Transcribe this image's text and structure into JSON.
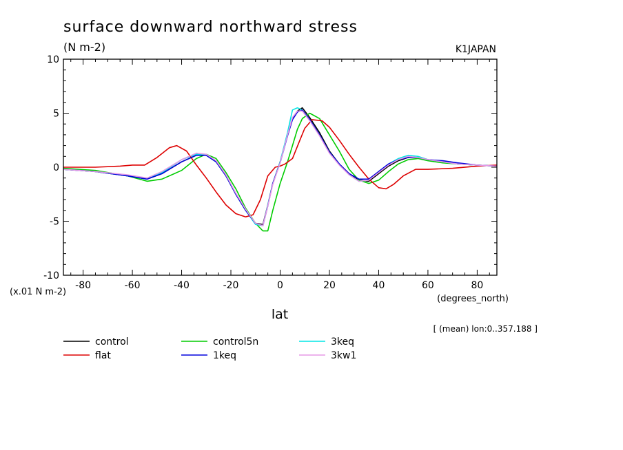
{
  "chart_data": {
    "type": "line",
    "title": "surface downward northward stress",
    "subtitle": "(N m-2)",
    "source_label": "K1JAPAN",
    "xlabel": "lat",
    "xunits": "(degrees_north)",
    "yscale_label": "(x.01 N m-2)",
    "mean_note": "[ (mean) lon:0..357.188 ]",
    "xlim": [
      -88,
      88
    ],
    "ylim": [
      -10,
      10
    ],
    "xticks": [
      -80,
      -60,
      -40,
      -20,
      0,
      20,
      40,
      60,
      80
    ],
    "yticks": [
      -10,
      -5,
      0,
      5,
      10
    ],
    "xtick_labels": [
      "-80",
      "-60",
      "-40",
      "-20",
      "0",
      "20",
      "40",
      "60",
      "80"
    ],
    "ytick_labels": [
      "-10",
      "-5",
      "0",
      "5",
      "10"
    ],
    "series": [
      {
        "name": "control",
        "color": "#000000",
        "x": [
          -88,
          -75,
          -62,
          -54,
          -48,
          -40,
          -34,
          -30,
          -26,
          -22,
          -18,
          -14,
          -10,
          -7,
          -5,
          -3,
          0,
          3,
          5,
          7,
          9,
          12,
          16,
          20,
          24,
          28,
          32,
          36,
          40,
          44,
          48,
          52,
          56,
          60,
          66,
          72,
          80,
          88
        ],
        "y": [
          -0.2,
          -0.4,
          -0.8,
          -1.1,
          -0.6,
          0.5,
          1.1,
          1.1,
          0.5,
          -0.8,
          -2.5,
          -4.0,
          -5.2,
          -5.3,
          -3.5,
          -1.5,
          0.5,
          3.0,
          4.5,
          5.2,
          5.5,
          4.6,
          3.2,
          1.5,
          0.3,
          -0.6,
          -1.2,
          -1.3,
          -0.6,
          0.1,
          0.6,
          0.9,
          0.9,
          0.7,
          0.5,
          0.3,
          0.2,
          0.1
        ]
      },
      {
        "name": "control5n",
        "color": "#00cc00",
        "x": [
          -88,
          -75,
          -62,
          -54,
          -48,
          -40,
          -34,
          -30,
          -26,
          -22,
          -18,
          -14,
          -10,
          -7,
          -5,
          -3,
          0,
          3,
          5,
          7,
          9,
          12,
          16,
          20,
          24,
          28,
          32,
          36,
          40,
          44,
          48,
          52,
          56,
          60,
          66,
          72,
          80,
          88
        ],
        "y": [
          -0.1,
          -0.3,
          -0.8,
          -1.3,
          -1.1,
          -0.3,
          0.8,
          1.2,
          0.8,
          -0.5,
          -2.0,
          -3.8,
          -5.2,
          -5.9,
          -5.9,
          -4.0,
          -1.5,
          0.5,
          2.0,
          3.5,
          4.5,
          5.0,
          4.5,
          3.0,
          1.5,
          -0.2,
          -1.2,
          -1.5,
          -1.2,
          -0.4,
          0.3,
          0.7,
          0.8,
          0.6,
          0.4,
          0.3,
          0.2,
          0.1
        ]
      },
      {
        "name": "3keq",
        "color": "#00e5e5",
        "x": [
          -88,
          -75,
          -62,
          -54,
          -48,
          -40,
          -34,
          -30,
          -26,
          -22,
          -18,
          -14,
          -10,
          -7,
          -5,
          -3,
          0,
          3,
          5,
          7,
          9,
          12,
          16,
          20,
          24,
          28,
          32,
          36,
          40,
          44,
          48,
          52,
          56,
          60,
          66,
          72,
          80,
          88
        ],
        "y": [
          -0.2,
          -0.4,
          -0.8,
          -1.1,
          -0.5,
          0.7,
          1.2,
          1.1,
          0.5,
          -0.8,
          -2.5,
          -4.0,
          -5.3,
          -5.4,
          -3.5,
          -1.5,
          0.5,
          3.2,
          5.3,
          5.5,
          5.3,
          4.4,
          3.0,
          1.4,
          0.3,
          -0.7,
          -1.3,
          -1.2,
          -0.4,
          0.3,
          0.8,
          1.1,
          1.0,
          0.7,
          0.5,
          0.3,
          0.2,
          0.1
        ]
      },
      {
        "name": "flat",
        "color": "#dd0000",
        "x": [
          -88,
          -75,
          -65,
          -60,
          -55,
          -50,
          -45,
          -42,
          -38,
          -34,
          -30,
          -26,
          -22,
          -18,
          -14,
          -11,
          -8,
          -5,
          -2,
          0,
          2,
          5,
          8,
          10,
          13,
          17,
          20,
          24,
          28,
          32,
          36,
          40,
          43,
          46,
          50,
          55,
          60,
          70,
          80,
          88
        ],
        "y": [
          0.0,
          0.0,
          0.1,
          0.2,
          0.2,
          0.9,
          1.8,
          2.0,
          1.5,
          0.2,
          -1.0,
          -2.3,
          -3.5,
          -4.3,
          -4.6,
          -4.4,
          -3.0,
          -0.8,
          0.0,
          0.1,
          0.3,
          0.8,
          2.5,
          3.6,
          4.4,
          4.3,
          3.7,
          2.5,
          1.2,
          0.0,
          -1.1,
          -1.9,
          -2.0,
          -1.6,
          -0.8,
          -0.2,
          -0.2,
          -0.1,
          0.1,
          0.2
        ]
      },
      {
        "name": "1keq",
        "color": "#0000dd",
        "x": [
          -88,
          -75,
          -62,
          -54,
          -48,
          -40,
          -34,
          -30,
          -26,
          -22,
          -18,
          -14,
          -10,
          -7,
          -5,
          -3,
          0,
          3,
          5,
          7,
          9,
          12,
          16,
          20,
          24,
          28,
          32,
          36,
          40,
          44,
          48,
          52,
          56,
          60,
          66,
          72,
          80,
          88
        ],
        "y": [
          -0.2,
          -0.4,
          -0.8,
          -1.1,
          -0.6,
          0.5,
          1.1,
          1.1,
          0.5,
          -0.8,
          -2.5,
          -4.0,
          -5.2,
          -5.4,
          -3.6,
          -1.5,
          0.4,
          2.9,
          4.4,
          5.1,
          5.3,
          4.4,
          3.0,
          1.4,
          0.3,
          -0.6,
          -1.1,
          -1.1,
          -0.4,
          0.3,
          0.7,
          0.9,
          0.9,
          0.7,
          0.6,
          0.4,
          0.2,
          0.1
        ]
      },
      {
        "name": "3kw1",
        "color": "#e699e6",
        "x": [
          -88,
          -75,
          -62,
          -54,
          -48,
          -40,
          -34,
          -30,
          -26,
          -22,
          -18,
          -14,
          -10,
          -7,
          -5,
          -3,
          0,
          3,
          5,
          7,
          9,
          12,
          16,
          20,
          24,
          28,
          32,
          36,
          40,
          44,
          48,
          52,
          56,
          60,
          66,
          72,
          80,
          88
        ],
        "y": [
          -0.2,
          -0.4,
          -0.7,
          -1.0,
          -0.4,
          0.7,
          1.3,
          1.2,
          0.6,
          -0.7,
          -2.4,
          -3.9,
          -5.2,
          -5.4,
          -3.6,
          -1.6,
          0.4,
          3.0,
          4.6,
          5.2,
          5.2,
          4.3,
          2.9,
          1.3,
          0.2,
          -0.7,
          -1.3,
          -1.2,
          -0.5,
          0.2,
          0.7,
          1.0,
          0.9,
          0.7,
          0.5,
          0.3,
          0.2,
          0.1
        ]
      }
    ],
    "legend": [
      {
        "name": "control",
        "color": "#000000"
      },
      {
        "name": "control5n",
        "color": "#00cc00"
      },
      {
        "name": "3keq",
        "color": "#00e5e5"
      },
      {
        "name": "flat",
        "color": "#dd0000"
      },
      {
        "name": "1keq",
        "color": "#0000dd"
      },
      {
        "name": "3kw1",
        "color": "#e699e6"
      }
    ]
  }
}
